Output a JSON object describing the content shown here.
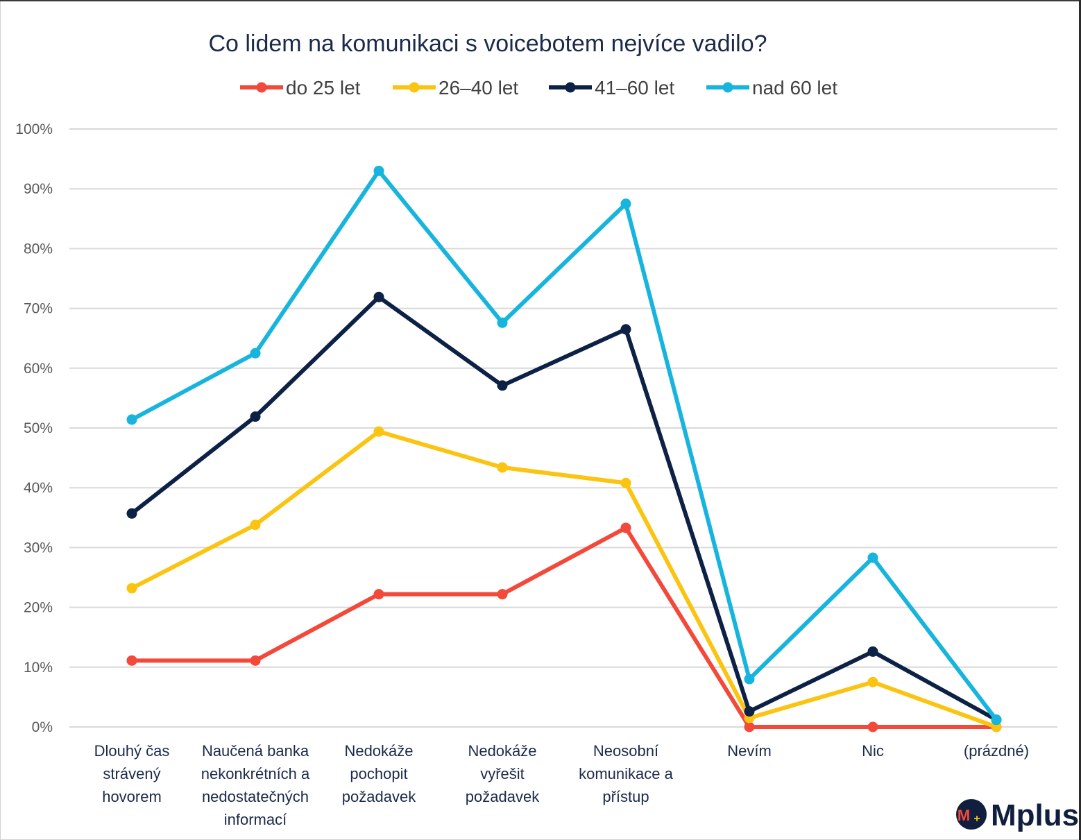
{
  "chart_data": {
    "type": "line",
    "title": "Co lidem na komunikaci s voicebotem nejvíce vadilo?",
    "categories": [
      [
        "Dlouhý čas",
        "strávený",
        "hovorem"
      ],
      [
        "Naučená banka",
        "nekonkrétních a",
        "nedostatečných",
        "informací"
      ],
      [
        "Nedokáže",
        "pochopit",
        "požadavek"
      ],
      [
        "Nedokáže",
        "vyřešit",
        "požadavek"
      ],
      [
        "Neosobní",
        "komunikace a",
        "přístup"
      ],
      [
        "Nevím"
      ],
      [
        "Nic"
      ],
      [
        "(prázdné)"
      ]
    ],
    "ylim": [
      0,
      100
    ],
    "yticks": [
      "0%",
      "10%",
      "20%",
      "30%",
      "40%",
      "50%",
      "60%",
      "70%",
      "80%",
      "90%",
      "100%"
    ],
    "grid": true,
    "legend_position": "top",
    "series": [
      {
        "name": "do 25 let",
        "color": "#f2493a",
        "values": [
          11.1,
          11.1,
          22.2,
          22.2,
          33.3,
          0,
          0,
          0
        ]
      },
      {
        "name": "26–40 let",
        "color": "#fac411",
        "values": [
          23.2,
          33.8,
          49.4,
          43.4,
          40.8,
          1.5,
          7.5,
          0
        ]
      },
      {
        "name": "41–60 let",
        "color": "#0c2145",
        "values": [
          35.7,
          51.9,
          71.9,
          57.1,
          66.5,
          2.6,
          12.6,
          1.2
        ]
      },
      {
        "name": "nad 60 let",
        "color": "#17b4de",
        "values": [
          51.4,
          62.5,
          93.0,
          67.6,
          87.5,
          8.0,
          28.3,
          1.2
        ]
      }
    ]
  },
  "logo": {
    "text": "Mplus",
    "mark": "M+"
  }
}
